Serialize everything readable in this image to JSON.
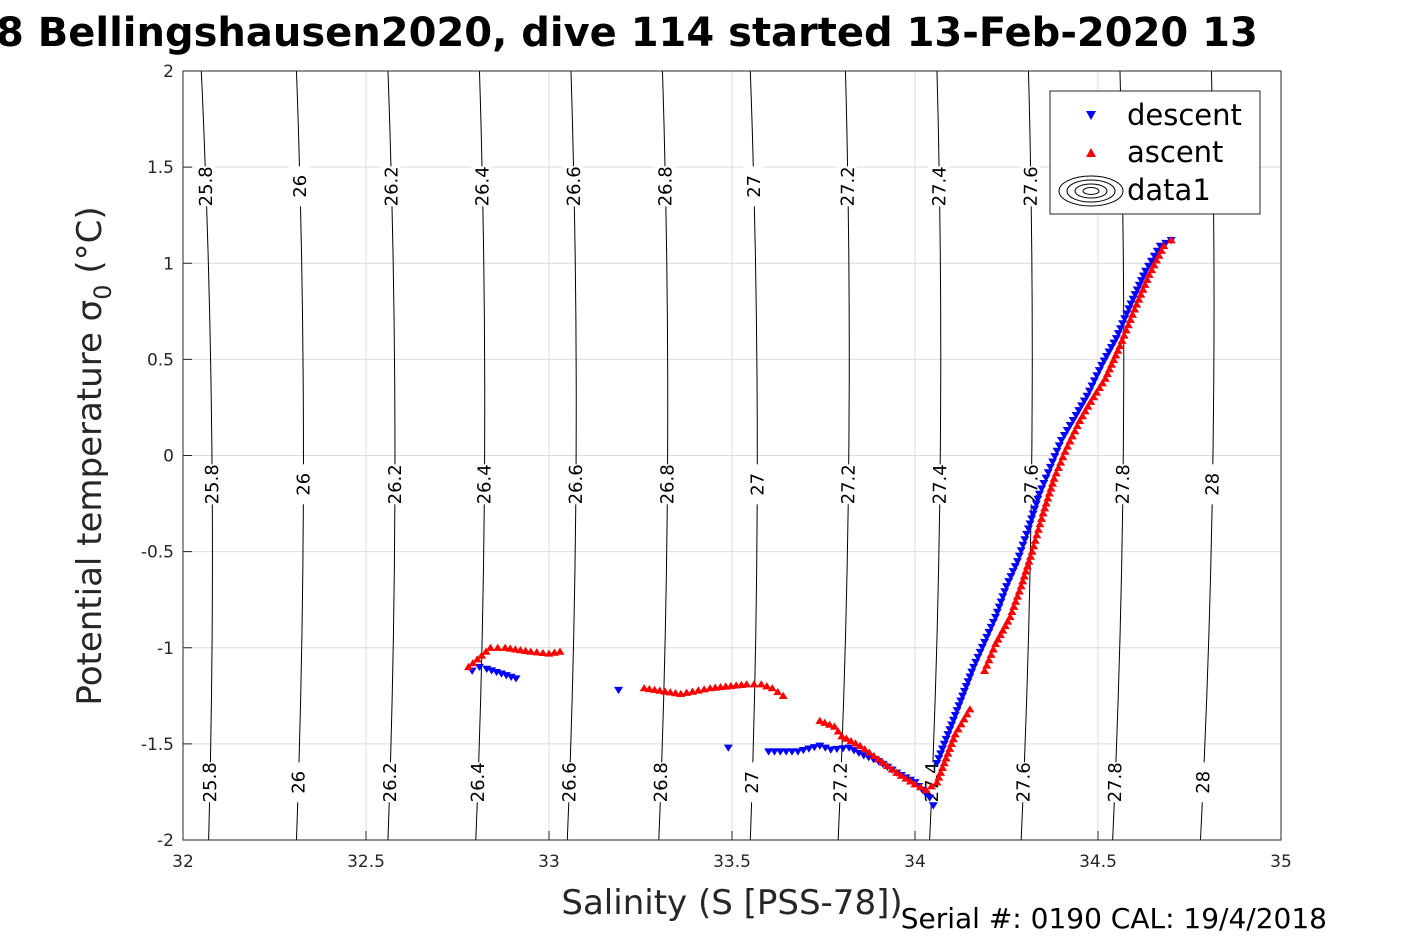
{
  "chart_data": {
    "type": "scatter",
    "title": "8 Bellingshausen2020, dive 114 started 13-Feb-2020 13",
    "xlabel": "Salinity (S [PSS-78])",
    "ylabel_main": "Potential temperature σ",
    "ylabel_sub": "0",
    "ylabel_unit": " (°C)",
    "xlim": [
      32,
      35
    ],
    "ylim": [
      -2,
      2
    ],
    "grid": true,
    "xticks": [
      "32",
      "32.5",
      "33",
      "33.5",
      "34",
      "34.5",
      "35"
    ],
    "yticks": [
      "-2",
      "-1.5",
      "-1",
      "-0.5",
      "0",
      "0.5",
      "1",
      "1.5",
      "2"
    ],
    "legend": {
      "placement": "top-right",
      "entries": [
        "descent",
        "ascent",
        "data1"
      ]
    },
    "colors": {
      "descent": "#0000ff",
      "ascent": "#ff0000",
      "contour": "#000000",
      "grid": "#dcdcdc"
    },
    "density_contours": [
      {
        "level": "25.8",
        "bottom": 32.07,
        "top": 32.05
      },
      {
        "level": "26",
        "bottom": 32.31,
        "top": 32.31
      },
      {
        "level": "26.2",
        "bottom": 32.56,
        "top": 32.56
      },
      {
        "level": "26.4",
        "bottom": 32.8,
        "top": 32.81
      },
      {
        "level": "26.6",
        "bottom": 33.05,
        "top": 33.06
      },
      {
        "level": "26.8",
        "bottom": 33.3,
        "top": 33.31
      },
      {
        "level": "27",
        "bottom": 33.55,
        "top": 33.55
      },
      {
        "level": "27.2",
        "bottom": 33.79,
        "top": 33.81
      },
      {
        "level": "27.4",
        "bottom": 34.04,
        "top": 34.06
      },
      {
        "level": "27.6",
        "bottom": 34.29,
        "top": 34.31
      },
      {
        "level": "27.8",
        "bottom": 34.54,
        "top": 34.56
      },
      {
        "level": "28",
        "bottom": 34.78,
        "top": 34.81
      }
    ],
    "series": [
      {
        "name": "descent",
        "marker": "triangle-down",
        "points": [
          [
            32.79,
            -1.12
          ],
          [
            32.81,
            -1.1
          ],
          [
            32.83,
            -1.11
          ],
          [
            32.91,
            -1.16
          ],
          [
            33.19,
            -1.22
          ],
          [
            33.49,
            -1.52
          ],
          [
            33.6,
            -1.54
          ],
          [
            33.68,
            -1.54
          ],
          [
            33.74,
            -1.51
          ],
          [
            33.77,
            -1.53
          ],
          [
            33.82,
            -1.52
          ],
          [
            33.86,
            -1.56
          ],
          [
            33.9,
            -1.59
          ],
          [
            33.95,
            -1.65
          ],
          [
            34.0,
            -1.7
          ],
          [
            34.04,
            -1.78
          ],
          [
            34.05,
            -1.82
          ],
          [
            34.06,
            -1.6
          ],
          [
            34.08,
            -1.5
          ],
          [
            34.1,
            -1.4
          ],
          [
            34.13,
            -1.25
          ],
          [
            34.16,
            -1.1
          ],
          [
            34.19,
            -0.97
          ],
          [
            34.22,
            -0.84
          ],
          [
            34.25,
            -0.68
          ],
          [
            34.28,
            -0.55
          ],
          [
            34.31,
            -0.38
          ],
          [
            34.34,
            -0.2
          ],
          [
            34.37,
            -0.06
          ],
          [
            34.4,
            0.08
          ],
          [
            34.44,
            0.21
          ],
          [
            34.47,
            0.31
          ],
          [
            34.51,
            0.47
          ],
          [
            34.55,
            0.61
          ],
          [
            34.59,
            0.79
          ],
          [
            34.63,
            0.96
          ],
          [
            34.67,
            1.09
          ],
          [
            34.7,
            1.12
          ]
        ]
      },
      {
        "name": "ascent",
        "marker": "triangle-up",
        "points": [
          [
            32.78,
            -1.1
          ],
          [
            32.84,
            -1.0
          ],
          [
            32.88,
            -1.0
          ],
          [
            32.95,
            -1.02
          ],
          [
            33.0,
            -1.03
          ],
          [
            33.03,
            -1.02
          ],
          [
            33.26,
            -1.21
          ],
          [
            33.36,
            -1.24
          ],
          [
            33.44,
            -1.21
          ],
          [
            33.54,
            -1.19
          ],
          [
            33.58,
            -1.19
          ],
          [
            33.61,
            -1.21
          ],
          [
            33.64,
            -1.25
          ],
          [
            33.74,
            -1.38
          ],
          [
            33.78,
            -1.41
          ],
          [
            33.8,
            -1.46
          ],
          [
            33.85,
            -1.51
          ],
          [
            33.9,
            -1.58
          ],
          [
            33.95,
            -1.65
          ],
          [
            34.0,
            -1.71
          ],
          [
            34.03,
            -1.74
          ],
          [
            34.06,
            -1.7
          ],
          [
            34.08,
            -1.6
          ],
          [
            34.11,
            -1.45
          ],
          [
            34.15,
            -1.32
          ],
          [
            34.19,
            -1.12
          ],
          [
            34.22,
            -0.98
          ],
          [
            34.26,
            -0.84
          ],
          [
            34.29,
            -0.68
          ],
          [
            34.32,
            -0.5
          ],
          [
            34.35,
            -0.3
          ],
          [
            34.38,
            -0.12
          ],
          [
            34.41,
            0.02
          ],
          [
            34.45,
            0.18
          ],
          [
            34.48,
            0.28
          ],
          [
            34.52,
            0.4
          ],
          [
            34.56,
            0.57
          ],
          [
            34.6,
            0.76
          ],
          [
            34.64,
            0.94
          ],
          [
            34.68,
            1.09
          ],
          [
            34.7,
            1.12
          ]
        ]
      }
    ]
  },
  "footer": {
    "serial_label": "Serial #: 0190  CAL: 19/4/2018"
  }
}
